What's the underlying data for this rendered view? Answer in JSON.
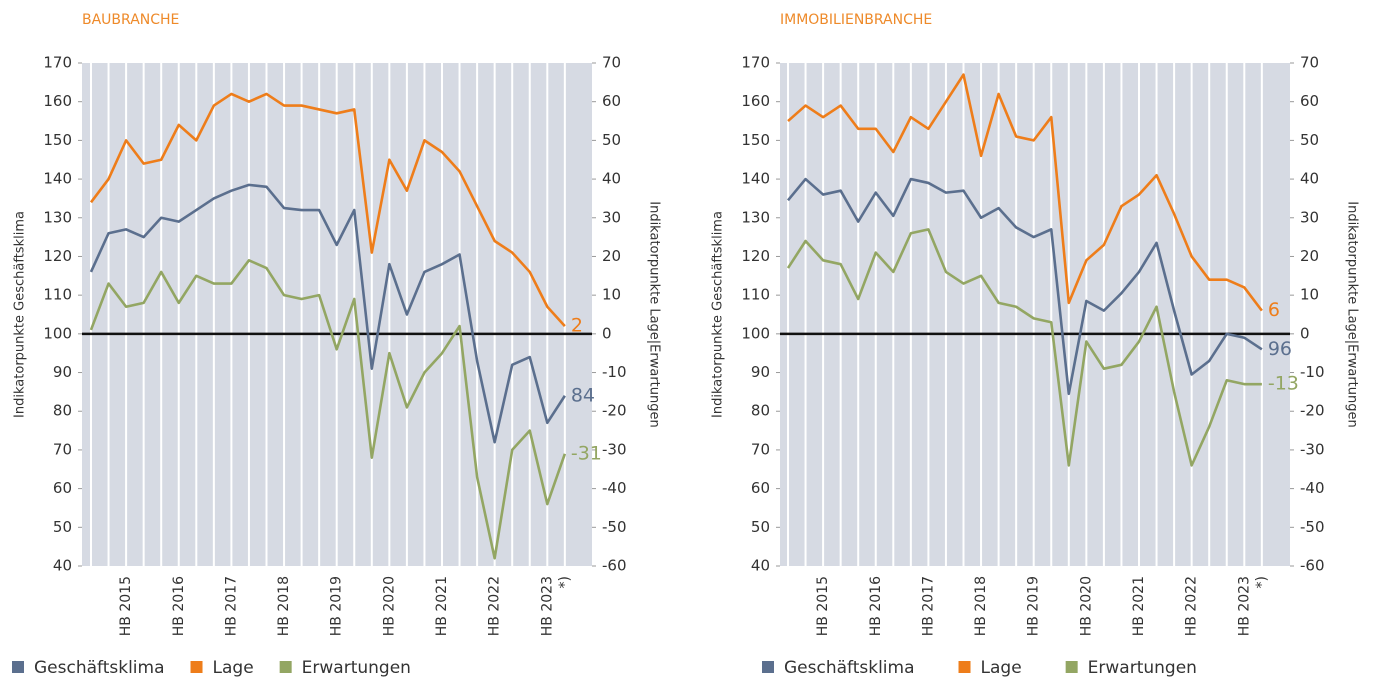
{
  "chart_data": [
    {
      "type": "line",
      "title": "BAUBRANCHE",
      "ylabel": "Indikatorpunkte Geschäftsklima",
      "y2label": "Indikatorpunkte Lage|Erwartungen",
      "categories": [
        null,
        null,
        "HB 2015",
        null,
        null,
        "HB 2016",
        null,
        null,
        "HB 2017",
        null,
        null,
        "HB 2018",
        null,
        null,
        "HB 2019",
        null,
        null,
        "HB 2020",
        null,
        null,
        "HB 2021",
        null,
        null,
        "HB 2022",
        null,
        null,
        "HB 2023",
        "*)"
      ],
      "ylim": [
        40,
        170
      ],
      "yticks": [
        40,
        50,
        60,
        70,
        80,
        90,
        100,
        110,
        120,
        130,
        140,
        150,
        160,
        170
      ],
      "y2lim": [
        -60,
        70
      ],
      "y2ticks": [
        -60,
        -50,
        -40,
        -30,
        -20,
        -10,
        0,
        10,
        20,
        30,
        40,
        50,
        60,
        70
      ],
      "zero_line": true,
      "series": [
        {
          "name": "Geschäftsklima",
          "color": "#5b6f8e",
          "values": [
            116,
            126,
            127,
            125,
            130,
            129,
            132,
            135,
            137,
            138.5,
            138,
            132.5,
            132,
            132,
            123,
            132,
            91,
            118,
            105,
            116,
            118,
            120.5,
            93,
            72,
            92,
            94,
            77,
            84
          ]
        },
        {
          "name": "Lage",
          "color": "#ee7d1a",
          "axis": "y2",
          "values": [
            34,
            40,
            50,
            44,
            45,
            54,
            50,
            59,
            62,
            60,
            62,
            59,
            59,
            58,
            57,
            58,
            21,
            45,
            37,
            50,
            47,
            42,
            33,
            24,
            21,
            16,
            7,
            2
          ]
        },
        {
          "name": "Erwartungen",
          "color": "#93a663",
          "axis": "y2",
          "values": [
            1,
            13,
            7,
            8,
            16,
            8,
            15,
            13,
            13,
            19,
            17,
            10,
            9,
            10,
            -4,
            9,
            -32,
            -5,
            -19,
            -10,
            -5,
            2,
            -37,
            -58,
            -30,
            -25,
            -44,
            -31
          ]
        }
      ]
    },
    {
      "type": "line",
      "title": "IMMOBILIENBRANCHE",
      "ylabel": "Indikatorpunkte Geschäftsklima",
      "y2label": "Indikatorpunkte Lage|Erwartungen",
      "categories": [
        null,
        null,
        "HB 2015",
        null,
        null,
        "HB 2016",
        null,
        null,
        "HB 2017",
        null,
        null,
        "HB 2018",
        null,
        null,
        "HB 2019",
        null,
        null,
        "HB 2020",
        null,
        null,
        "HB 2021",
        null,
        null,
        "HB 2022",
        null,
        null,
        "HB 2023",
        "*)"
      ],
      "ylim": [
        40,
        170
      ],
      "yticks": [
        40,
        50,
        60,
        70,
        80,
        90,
        100,
        110,
        120,
        130,
        140,
        150,
        160,
        170
      ],
      "y2lim": [
        -60,
        70
      ],
      "y2ticks": [
        -60,
        -50,
        -40,
        -30,
        -20,
        -10,
        0,
        10,
        20,
        30,
        40,
        50,
        60,
        70
      ],
      "zero_line": true,
      "series": [
        {
          "name": "Geschäftsklima",
          "color": "#5b6f8e",
          "values": [
            134.5,
            140,
            136,
            137,
            129,
            136.5,
            130.5,
            140,
            139,
            136.5,
            137,
            130,
            132.5,
            127.5,
            125,
            127,
            84.5,
            108.5,
            106,
            110.5,
            116,
            123.5,
            106,
            89.5,
            93,
            100,
            99,
            96
          ]
        },
        {
          "name": "Lage",
          "color": "#ee7d1a",
          "axis": "y2",
          "values": [
            55,
            59,
            56,
            59,
            53,
            53,
            47,
            56,
            53,
            60,
            67,
            46,
            62,
            51,
            50,
            56,
            8,
            19,
            23,
            33,
            36,
            41,
            31,
            20,
            14,
            14,
            12,
            6
          ]
        },
        {
          "name": "Erwartungen",
          "color": "#93a663",
          "axis": "y2",
          "values": [
            17,
            24,
            19,
            18,
            9,
            21,
            16,
            26,
            27,
            16,
            13,
            15,
            8,
            7,
            4,
            3,
            -34,
            -2,
            -9,
            -8,
            -2,
            7,
            -15,
            -34,
            -24,
            -12,
            -13,
            -13
          ]
        }
      ]
    }
  ]
}
